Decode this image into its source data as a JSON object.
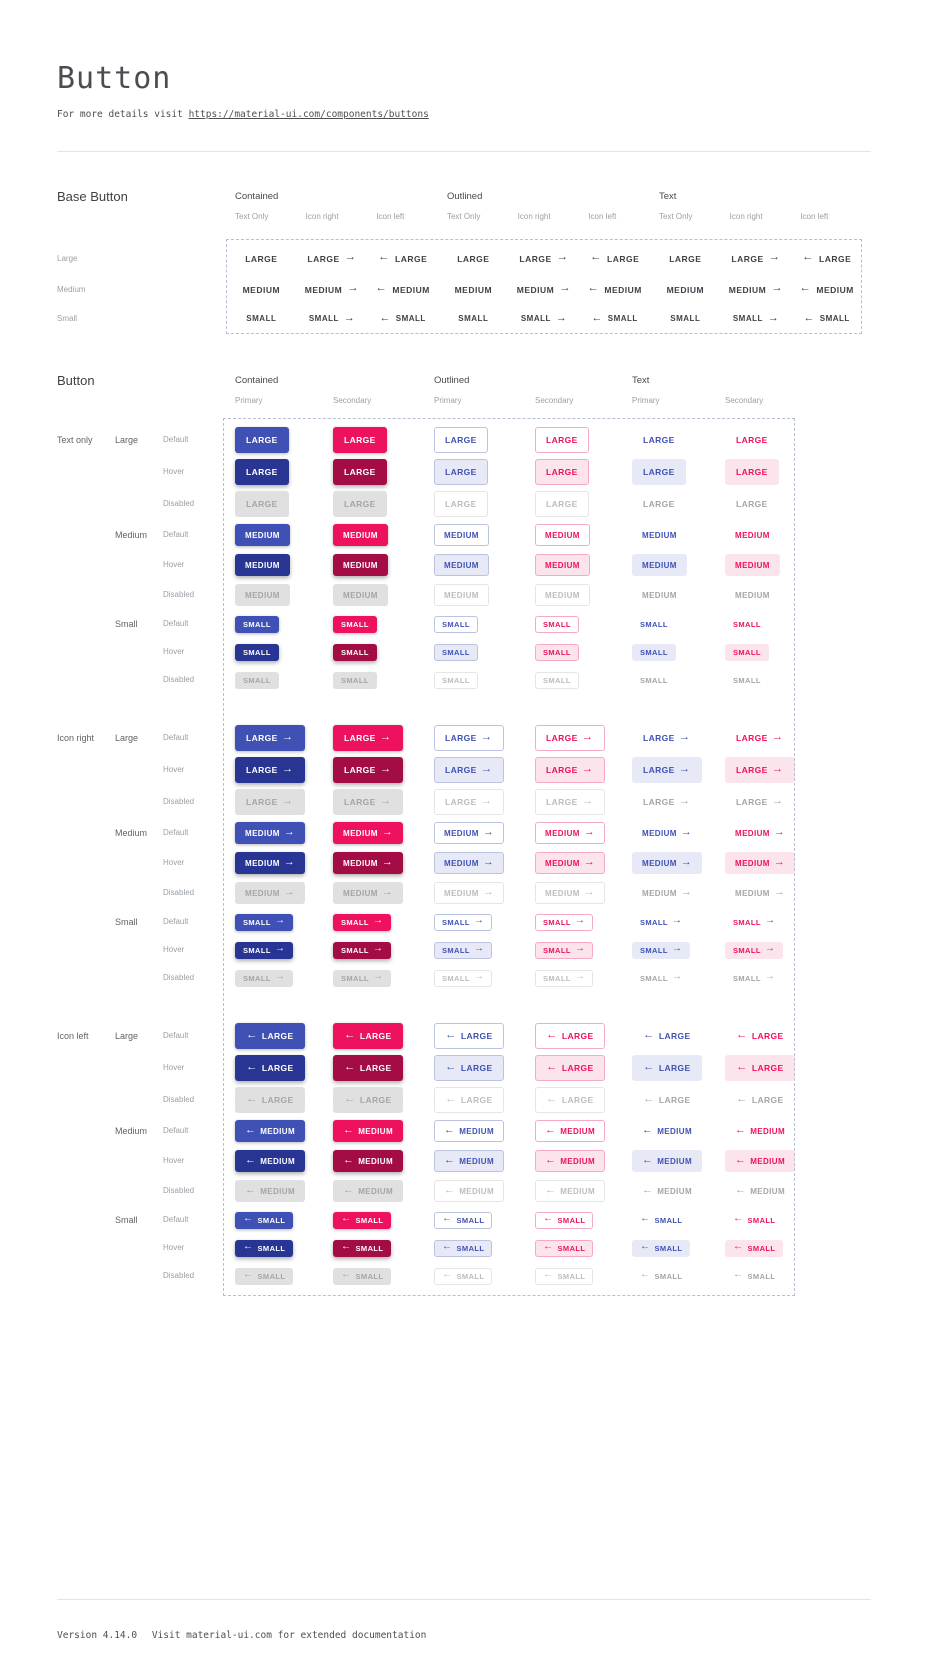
{
  "page": {
    "title": "Button",
    "subtitle_prefix": "For more details visit",
    "subtitle_link": "https://material-ui.com/components/buttons",
    "footer_version": "Version 4.14.0",
    "footer_note": "Visit material-ui.com for extended documentation"
  },
  "colors": {
    "primary": "#3f51b5",
    "primary_hover": "#283593",
    "secondary": "#ee1160",
    "secondary_hover": "#a30c45",
    "primary_tint": "#e7eaf6",
    "secondary_tint": "#fce4ed",
    "outlined_primary_border": "#bcc3e0",
    "outlined_secondary_border": "#f7a9c4",
    "disabled_bg": "#e0e0e0",
    "disabled_text": "#a5a5a5",
    "disabled_border": "#e5e5e5",
    "disabled_text_light": "#bdbdbd",
    "base_button_text": "#3e4247",
    "dashed_border": "#b7bfd2"
  },
  "icons": {
    "arrow_right": "→",
    "arrow_left": "←"
  },
  "base_button": {
    "heading": "Base Button",
    "group_headers": [
      "Contained",
      "Outlined",
      "Text"
    ],
    "variant_headers": [
      "Text Only",
      "Icon right",
      "Icon left"
    ],
    "sizes": [
      {
        "label": "Large",
        "key": "large",
        "text": "LARGE"
      },
      {
        "label": "Medium",
        "key": "medium",
        "text": "MEDIUM"
      },
      {
        "label": "Small",
        "key": "small",
        "text": "SMALL"
      }
    ]
  },
  "button": {
    "heading": "Button",
    "group_headers": [
      "Contained",
      "Outlined",
      "Text"
    ],
    "palette_headers": [
      "Primary",
      "Secondary"
    ],
    "columns": [
      {
        "variant": "contained",
        "palette": "primary"
      },
      {
        "variant": "contained",
        "palette": "secondary"
      },
      {
        "variant": "outlined",
        "palette": "primary"
      },
      {
        "variant": "outlined",
        "palette": "secondary"
      },
      {
        "variant": "text",
        "palette": "primary"
      },
      {
        "variant": "text",
        "palette": "secondary"
      }
    ],
    "row_groups": [
      {
        "label": "Text only",
        "icon": "none"
      },
      {
        "label": "Icon right",
        "icon": "right"
      },
      {
        "label": "Icon left",
        "icon": "left"
      }
    ],
    "sizes": [
      {
        "label": "Large",
        "key": "large",
        "text": "LARGE"
      },
      {
        "label": "Medium",
        "key": "medium",
        "text": "MEDIUM"
      },
      {
        "label": "Small",
        "key": "small",
        "text": "SMALL"
      }
    ],
    "states": [
      {
        "label": "Default",
        "key": "default"
      },
      {
        "label": "Hover",
        "key": "hover"
      },
      {
        "label": "Disabled",
        "key": "disabled"
      }
    ]
  }
}
